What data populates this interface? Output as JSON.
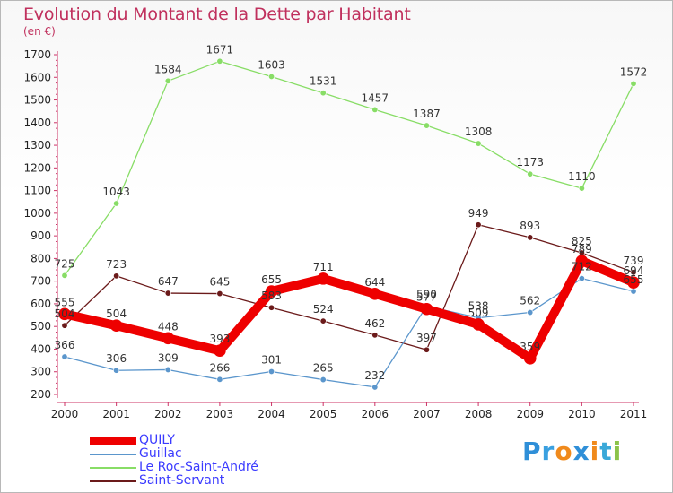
{
  "chart_data": {
    "type": "line",
    "title": "Evolution du Montant de la Dette par Habitant",
    "subtitle": "(en €)",
    "xlabel": "",
    "ylabel": "(en €)",
    "ylim": [
      200,
      1700
    ],
    "grid": false,
    "legend_position": "bottom-left",
    "x": [
      "2000",
      "2001",
      "2002",
      "2003",
      "2004",
      "2005",
      "2006",
      "2007",
      "2008",
      "2009",
      "2010",
      "2011"
    ],
    "y_ticks": [
      200,
      300,
      400,
      500,
      600,
      700,
      800,
      900,
      1000,
      1100,
      1200,
      1300,
      1400,
      1500,
      1600,
      1700
    ],
    "series": [
      {
        "name": "Saint-Servant",
        "color": "#6b1a1a",
        "width": 1.3,
        "values": [
          504,
          723,
          647,
          645,
          583,
          524,
          462,
          397,
          949,
          893,
          825,
          739
        ],
        "labels": [
          "504",
          "723",
          "647",
          "645",
          "583",
          "524",
          "462",
          "397",
          "949",
          "893",
          "825",
          "739"
        ]
      },
      {
        "name": "Le Roc-Saint-André",
        "color": "#88dd66",
        "width": 1.3,
        "values": [
          725,
          1043,
          1584,
          1671,
          1603,
          1531,
          1457,
          1387,
          1308,
          1173,
          1110,
          1572
        ],
        "labels": [
          "725",
          "1043",
          "1584",
          "1671",
          "1603",
          "1531",
          "1457",
          "1387",
          "1308",
          "1173",
          "1110",
          "1572"
        ]
      },
      {
        "name": "Guillac",
        "color": "#5b96cc",
        "width": 1.3,
        "values": [
          366,
          306,
          309,
          266,
          301,
          265,
          232,
          590,
          538,
          562,
          712,
          655
        ],
        "labels": [
          "366",
          "306",
          "309",
          "266",
          "301",
          "265",
          "232",
          "590",
          "538",
          "562",
          "712",
          "655"
        ]
      },
      {
        "name": "QUILY",
        "color": "#ee0000",
        "width": 10,
        "values": [
          555,
          504,
          448,
          393,
          655,
          711,
          644,
          577,
          509,
          359,
          789,
          694
        ],
        "labels": [
          "555",
          "504",
          "448",
          "393",
          "655",
          "711",
          "644",
          "577",
          "509",
          "359",
          "789",
          "694"
        ]
      }
    ]
  },
  "legend": [
    {
      "name": "QUILY",
      "color": "#ee0000",
      "thickness": 10
    },
    {
      "name": "Guillac",
      "color": "#5b96cc",
      "thickness": 2
    },
    {
      "name": "Le Roc-Saint-André",
      "color": "#88dd66",
      "thickness": 2
    },
    {
      "name": "Saint-Servant",
      "color": "#6b1a1a",
      "thickness": 2
    }
  ],
  "logo": {
    "letters": [
      "P",
      "r",
      "o",
      "x",
      "i",
      "t",
      "i"
    ],
    "colors": [
      "#2f8fd8",
      "#3aa0e0",
      "#f08a1c",
      "#2f8fd8",
      "#f08a1c",
      "#3aa8d8",
      "#8bc34a"
    ]
  }
}
